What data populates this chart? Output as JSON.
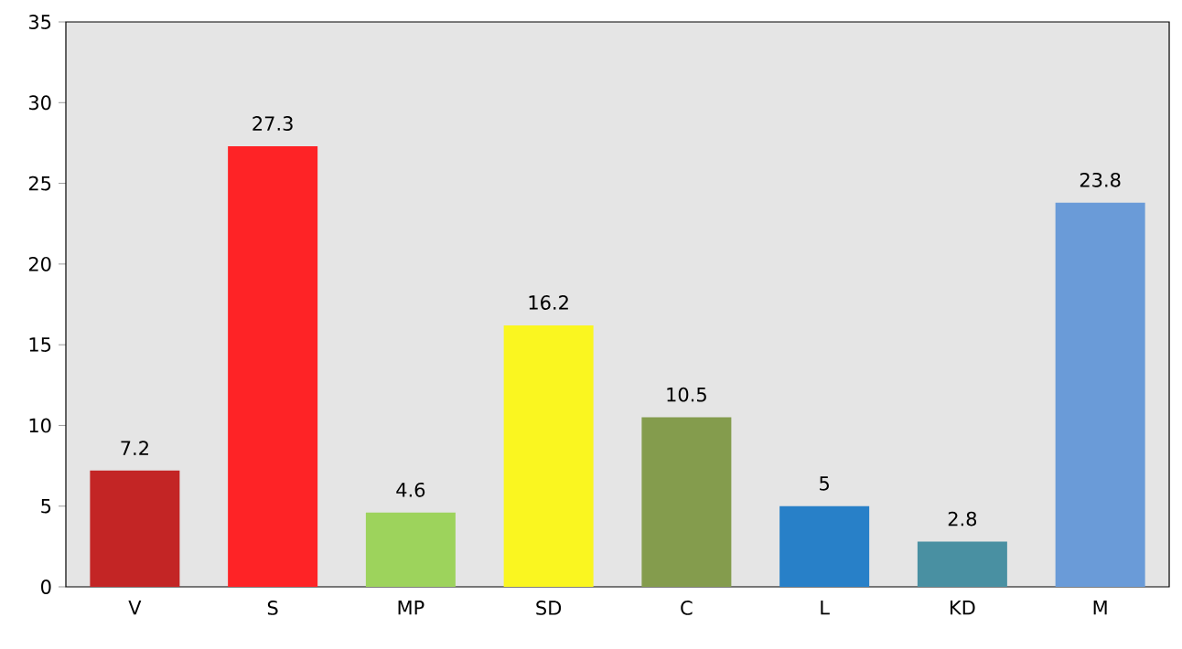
{
  "chart_data": {
    "type": "bar",
    "categories": [
      "V",
      "S",
      "MP",
      "SD",
      "C",
      "L",
      "KD",
      "M"
    ],
    "values": [
      7.2,
      27.3,
      4.6,
      16.2,
      10.5,
      5,
      2.8,
      23.8
    ],
    "colors": [
      "#c32525",
      "#fe2326",
      "#9dd35c",
      "#faf620",
      "#849c4d",
      "#2880c8",
      "#4990a2",
      "#6a9bd8"
    ],
    "ylim": [
      0,
      35
    ],
    "yticks": [
      0,
      5,
      10,
      15,
      20,
      25,
      30,
      35
    ],
    "data_labels": true,
    "grid": false
  }
}
